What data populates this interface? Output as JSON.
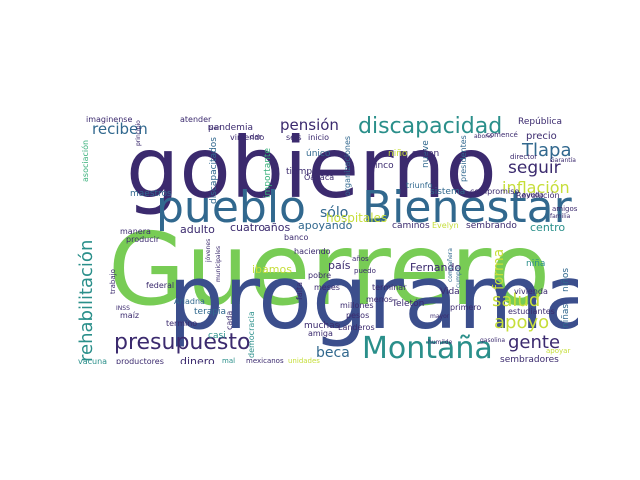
{
  "word_cloud": {
    "palette": {
      "dark_purple": "#3b2a6e",
      "navy": "#3b4e8c",
      "blue": "#31688e",
      "teal": "#2a8f8a",
      "green": "#38b07a",
      "light_green": "#78cc55",
      "yellow": "#c6de3a",
      "violet": "#5b2c85"
    },
    "words": [
      {
        "text": "Guerrero",
        "color": "light_green"
      },
      {
        "text": "gobierno",
        "color": "dark_purple"
      },
      {
        "text": "programa",
        "color": "navy"
      },
      {
        "text": "pueblo",
        "color": "blue"
      },
      {
        "text": "Bienestar",
        "color": "blue"
      },
      {
        "text": "Montaña",
        "color": "teal"
      },
      {
        "text": "discapacidad",
        "color": "teal"
      },
      {
        "text": "presupuesto",
        "color": "dark_purple"
      },
      {
        "text": "rehabilitación",
        "color": "teal"
      },
      {
        "text": "apoyo",
        "color": "yellow"
      },
      {
        "text": "salud",
        "color": "yellow"
      },
      {
        "text": "gente",
        "color": "dark_purple"
      },
      {
        "text": "Tlapa",
        "color": "blue"
      },
      {
        "text": "seguir",
        "color": "dark_purple"
      },
      {
        "text": "inflación",
        "color": "yellow"
      },
      {
        "text": "pensión",
        "color": "dark_purple"
      },
      {
        "text": "reciben",
        "color": "blue"
      },
      {
        "text": "sólo",
        "color": "blue"
      },
      {
        "text": "beca",
        "color": "blue"
      },
      {
        "text": "forma",
        "color": "yellow"
      },
      {
        "text": "hospitales",
        "color": "yellow"
      },
      {
        "text": "adulto",
        "color": "dark_purple"
      },
      {
        "text": "cuatro",
        "color": "dark_purple"
      },
      {
        "text": "años",
        "color": "dark_purple"
      },
      {
        "text": "apoyando",
        "color": "blue"
      },
      {
        "text": "caminos",
        "color": "dark_purple"
      },
      {
        "text": "sembrando",
        "color": "dark_purple"
      },
      {
        "text": "centro",
        "color": "teal"
      },
      {
        "text": "Fernando",
        "color": "dark_purple"
      },
      {
        "text": "país",
        "color": "dark_purple"
      },
      {
        "text": "ibamos",
        "color": "yellow"
      },
      {
        "text": "dinero",
        "color": "dark_purple"
      },
      {
        "text": "casi",
        "color": "teal"
      },
      {
        "text": "terapia",
        "color": "blue"
      },
      {
        "text": "muchas",
        "color": "dark_purple"
      },
      {
        "text": "precio",
        "color": "dark_purple"
      },
      {
        "text": "República",
        "color": "dark_purple"
      },
      {
        "text": "sembradores",
        "color": "dark_purple"
      },
      {
        "text": "productores",
        "color": "dark_purple"
      },
      {
        "text": "vacuna",
        "color": "teal"
      },
      {
        "text": "maestros",
        "color": "blue"
      },
      {
        "text": "pandemia",
        "color": "dark_purple"
      },
      {
        "text": "imaginense",
        "color": "dark_purple"
      },
      {
        "text": "atender",
        "color": "dark_purple"
      },
      {
        "text": "asociación",
        "color": "green"
      },
      {
        "text": "discapacitados",
        "color": "blue"
      },
      {
        "text": "importante",
        "color": "green"
      },
      {
        "text": "organizaciones",
        "color": "blue"
      },
      {
        "text": "nueve",
        "color": "blue"
      },
      {
        "text": "saben",
        "color": "dark_purple"
      },
      {
        "text": "cinco",
        "color": "dark_purple"
      },
      {
        "text": "único",
        "color": "blue"
      },
      {
        "text": "tiempo",
        "color": "dark_purple"
      },
      {
        "text": "sistema",
        "color": "blue"
      },
      {
        "text": "compromiso",
        "color": "dark_purple"
      },
      {
        "text": "triunfo",
        "color": "blue"
      },
      {
        "text": "presidentes",
        "color": "blue"
      },
      {
        "text": "niño",
        "color": "yellow"
      },
      {
        "text": "director",
        "color": "dark_purple"
      },
      {
        "text": "ayuda",
        "color": "dark_purple"
      },
      {
        "text": "Revolución",
        "color": "dark_purple"
      },
      {
        "text": "amigos",
        "color": "dark_purple"
      },
      {
        "text": "familia",
        "color": "dark_purple"
      },
      {
        "text": "Evelyn",
        "color": "yellow"
      },
      {
        "text": "niña",
        "color": "teal"
      },
      {
        "text": "niños",
        "color": "blue"
      },
      {
        "text": "niñas",
        "color": "blue"
      },
      {
        "text": "vivienda",
        "color": "dark_purple"
      },
      {
        "text": "estudiantes",
        "color": "dark_purple"
      },
      {
        "text": "primero",
        "color": "dark_purple"
      },
      {
        "text": "Teletón",
        "color": "dark_purple"
      },
      {
        "text": "Vida",
        "color": "dark_purple"
      },
      {
        "text": "millones",
        "color": "dark_purple"
      },
      {
        "text": "pesos",
        "color": "dark_purple"
      },
      {
        "text": "Landeros",
        "color": "dark_purple"
      },
      {
        "text": "amiga",
        "color": "dark_purple"
      },
      {
        "text": "democracia",
        "color": "teal"
      },
      {
        "text": "cada",
        "color": "dark_purple"
      },
      {
        "text": "termino",
        "color": "dark_purple"
      },
      {
        "text": "Ariadna",
        "color": "blue"
      },
      {
        "text": "federal",
        "color": "dark_purple"
      },
      {
        "text": "maíz",
        "color": "dark_purple"
      },
      {
        "text": "manera",
        "color": "dark_purple"
      },
      {
        "text": "producir",
        "color": "dark_purple"
      },
      {
        "text": "pobre",
        "color": "dark_purple"
      },
      {
        "text": "haciendo",
        "color": "dark_purple"
      },
      {
        "text": "terminar",
        "color": "dark_purple"
      },
      {
        "text": "menos",
        "color": "dark_purple"
      },
      {
        "text": "banco",
        "color": "dark_purple"
      },
      {
        "text": "falta",
        "color": "dark_purple"
      },
      {
        "text": "meses",
        "color": "dark_purple"
      },
      {
        "text": "mexicanos",
        "color": "dark_purple"
      },
      {
        "text": "unidades",
        "color": "yellow"
      },
      {
        "text": "Oaxaca",
        "color": "dark_purple"
      },
      {
        "text": "seis",
        "color": "dark_purple"
      },
      {
        "text": "inicio",
        "color": "dark_purple"
      },
      {
        "text": "viniendo",
        "color": "dark_purple"
      },
      {
        "text": "humilde",
        "color": "dark_purple"
      },
      {
        "text": "apoyar",
        "color": "yellow"
      },
      {
        "text": "mayor",
        "color": "dark_purple"
      },
      {
        "text": "municipales",
        "color": "dark_purple"
      },
      {
        "text": "jóvenes",
        "color": "dark_purple"
      },
      {
        "text": "compañera",
        "color": "blue"
      },
      {
        "text": "cumplir",
        "color": "blue"
      },
      {
        "text": "comencé",
        "color": "dark_purple"
      },
      {
        "text": "puedo",
        "color": "dark_purple"
      },
      {
        "text": "años",
        "color": "dark_purple"
      },
      {
        "text": "mal",
        "color": "teal"
      },
      {
        "text": "dar",
        "color": "dark_purple"
      },
      {
        "text": "bien",
        "color": "dark_purple"
      },
      {
        "text": "principio",
        "color": "dark_purple"
      },
      {
        "text": "gasolina",
        "color": "dark_purple"
      },
      {
        "text": "abono",
        "color": "dark_purple"
      },
      {
        "text": "Garantía",
        "color": "dark_purple"
      },
      {
        "text": "trabajo",
        "color": "dark_purple"
      },
      {
        "text": "INSS",
        "color": "dark_purple"
      }
    ]
  }
}
